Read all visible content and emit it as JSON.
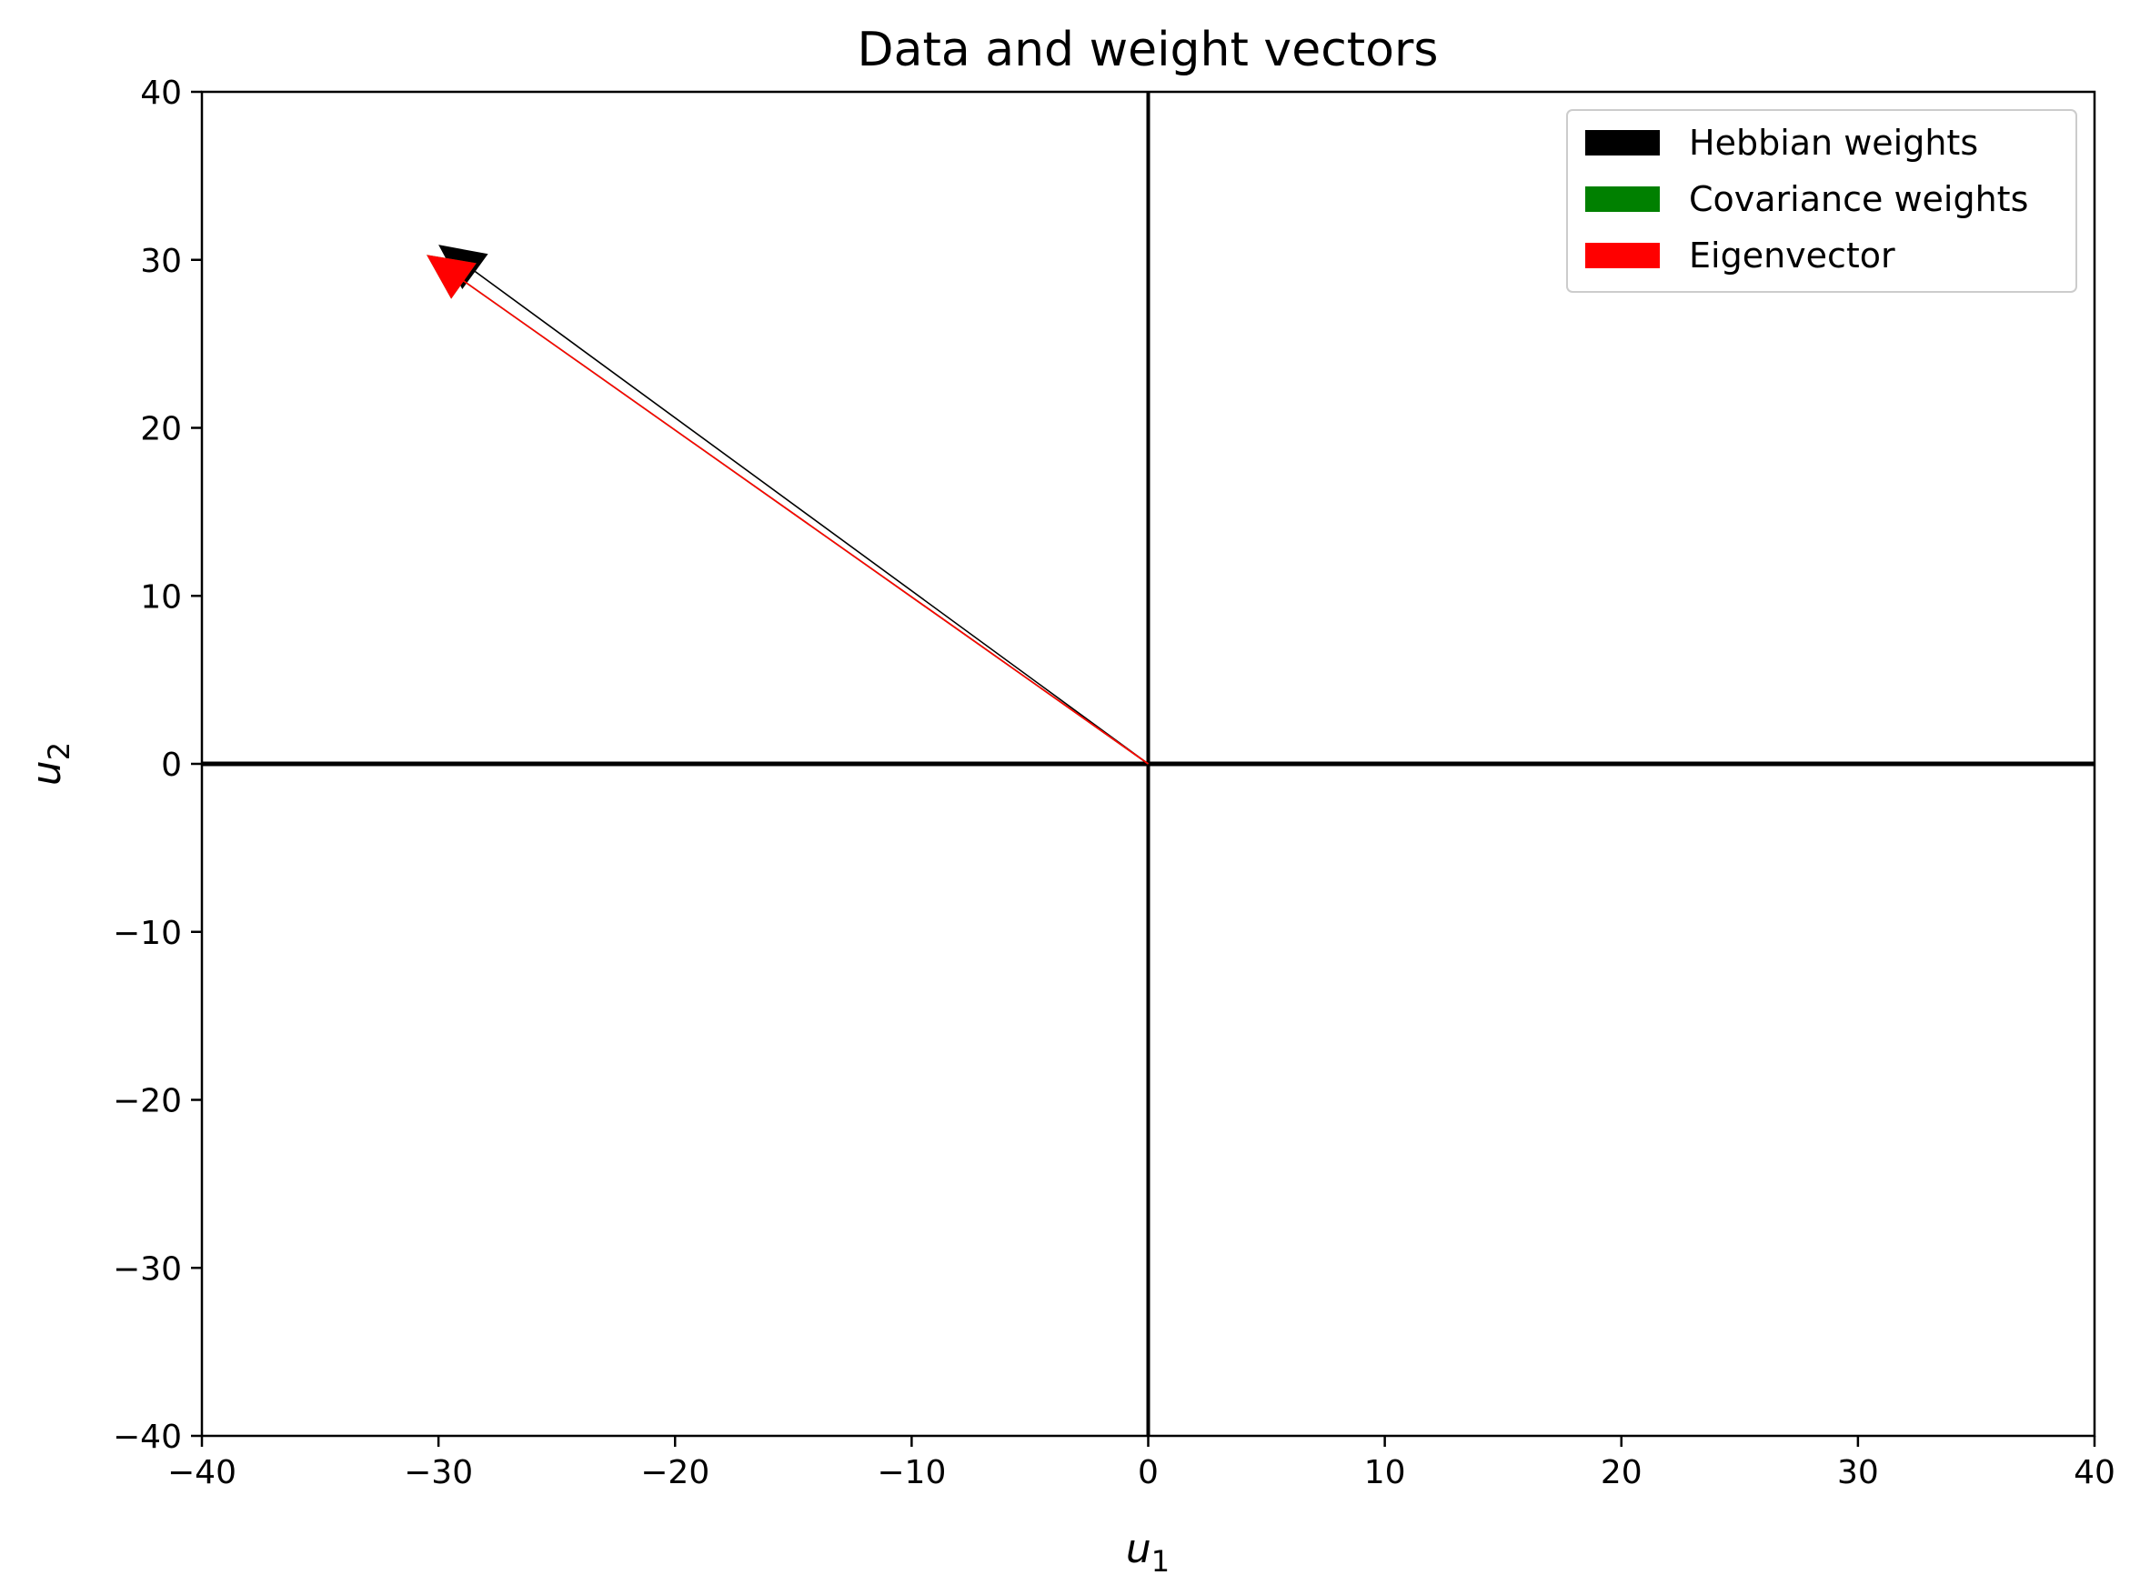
{
  "chart_data": {
    "type": "quiver",
    "title": "Data and weight vectors",
    "xlabel": {
      "base": "u",
      "sub": "1"
    },
    "ylabel": {
      "base": "u",
      "sub": "2"
    },
    "xlim": [
      -40,
      40
    ],
    "ylim": [
      -40,
      40
    ],
    "xticks": [
      -40,
      -30,
      -20,
      -10,
      0,
      10,
      20,
      30,
      40
    ],
    "yticks": [
      -40,
      -30,
      -20,
      -10,
      0,
      10,
      20,
      30,
      40
    ],
    "xtick_labels": [
      "−40",
      "−30",
      "−20",
      "−10",
      "0",
      "10",
      "20",
      "30",
      "40"
    ],
    "ytick_labels": [
      "−40",
      "−30",
      "−20",
      "−10",
      "0",
      "10",
      "20",
      "30",
      "40"
    ],
    "grid": false,
    "legend_position": "top-right",
    "reference_lines": {
      "x": 0,
      "y": 0,
      "color": "#000000"
    },
    "series": [
      {
        "name": "Hebbian weights",
        "color": "#000000",
        "origin": [
          0,
          0
        ],
        "tip": [
          -30.0,
          30.9
        ]
      },
      {
        "name": "Covariance weights",
        "color": "#008000",
        "origin": [
          0,
          0
        ],
        "tip": [
          -30.5,
          30.3
        ]
      },
      {
        "name": "Eigenvector",
        "color": "#ff0000",
        "origin": [
          0,
          0
        ],
        "tip": [
          -30.5,
          30.3
        ]
      }
    ]
  }
}
